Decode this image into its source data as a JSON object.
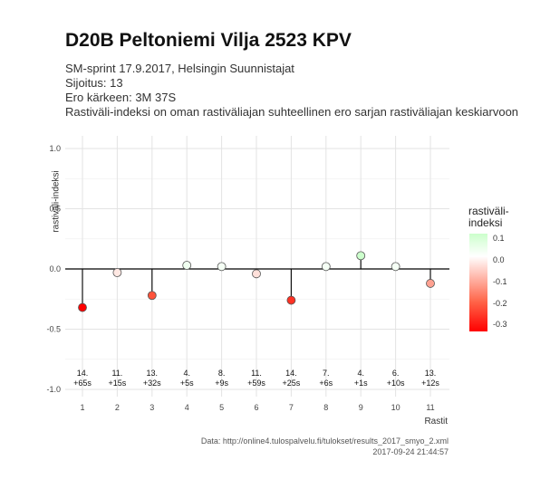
{
  "title": "D20B Peltoniemi Vilja 2523 KPV",
  "subtitle_lines": [
    "SM-sprint 17.9.2017, Helsingin Suunnistajat",
    "Sijoitus: 13",
    "Ero kärkeen: 3M 37S",
    "Rastiväli-indeksi on oman rastiväliajan suhteellinen ero sarjan rastiväliajan keskiarvoon"
  ],
  "caption_lines": [
    "Data: http://online4.tulospalvelu.fi/tulokset/results_2017_smyo_2.xml",
    "2017-09-24 21:44:57"
  ],
  "legend": {
    "title_lines": [
      "rastiväli-",
      "indeksi"
    ],
    "labels": [
      "0.1",
      "0.0",
      "-0.1",
      "-0.2",
      "-0.3"
    ]
  },
  "chart_data": {
    "type": "lollipop",
    "xlabel": "Rastit",
    "ylabel": "rastiväli-indeksi",
    "ylim": [
      -1.0,
      1.0
    ],
    "yticks": [
      "1.0",
      "0.5",
      "0.0",
      "-0.5",
      "-1.0"
    ],
    "x": [
      1,
      2,
      3,
      4,
      5,
      6,
      7,
      8,
      9,
      10,
      11
    ],
    "values": [
      -0.32,
      -0.03,
      -0.22,
      0.03,
      0.02,
      -0.04,
      -0.26,
      0.02,
      0.11,
      0.02,
      -0.12
    ],
    "ranks": [
      "14.",
      "11.",
      "13.",
      "4.",
      "8.",
      "11.",
      "14.",
      "7.",
      "4.",
      "6.",
      "13."
    ],
    "diffs": [
      "+65s",
      "+15s",
      "+32s",
      "+5s",
      "+9s",
      "+59s",
      "+25s",
      "+6s",
      "+1s",
      "+10s",
      "+12s"
    ]
  }
}
